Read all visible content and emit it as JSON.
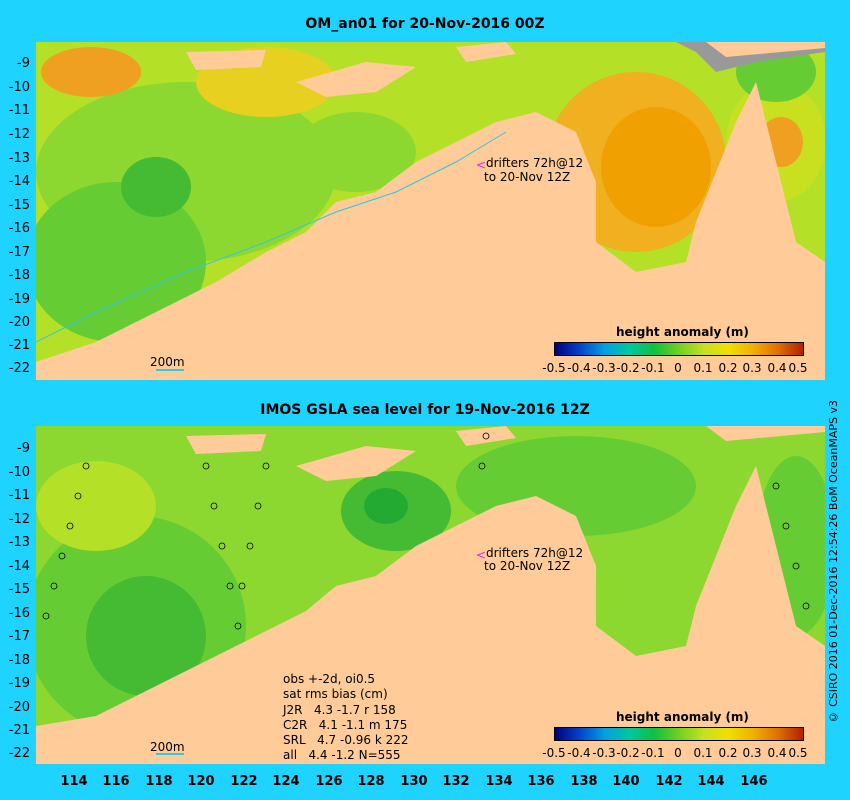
{
  "panel_top": {
    "title": "OM_an01 for 20-Nov-2016 00Z",
    "drifters_line1": "drifters 72h@12",
    "drifters_line2": "to 20-Nov 12Z",
    "scale_label": "200m",
    "legend_title": "height anomaly (m)"
  },
  "panel_bottom": {
    "title": "IMOS GSLA sea level  for 19-Nov-2016 12Z",
    "drifters_line1": "drifters 72h@12",
    "drifters_line2": "to 20-Nov 12Z",
    "scale_label": "200m",
    "legend_title": "height anomaly (m)",
    "stats": [
      "obs +-2d, oi0.5",
      "sat rms bias (cm)",
      "J2R   4.3 -1.7 r 158",
      "C2R   4.1 -1.1 m 175",
      "SRL   4.7 -0.96 k 222",
      "all   4.4 -1.2 N=555"
    ]
  },
  "y_ticks": [
    "-9",
    "-10",
    "-11",
    "-12",
    "-13",
    "-14",
    "-15",
    "-16",
    "-17",
    "-18",
    "-19",
    "-20",
    "-21",
    "-22"
  ],
  "x_ticks": [
    "114",
    "116",
    "118",
    "120",
    "122",
    "124",
    "126",
    "128",
    "130",
    "132",
    "134",
    "136",
    "138",
    "140",
    "142",
    "144",
    "146"
  ],
  "colorbar_ticks": [
    "-0.5",
    "-0.4",
    "-0.3",
    "-0.2",
    "-0.1",
    "0",
    "0.1",
    "0.2",
    "0.3",
    "0.4",
    "0.5"
  ],
  "colorbar_colors": [
    "#00007a",
    "#0044cc",
    "#00a0e0",
    "#00c8a0",
    "#10c040",
    "#70d020",
    "#c8e020",
    "#f0e000",
    "#f0b000",
    "#e07000",
    "#b02000"
  ],
  "colors": {
    "background": "#1fd3ff",
    "land": "#ffcc99",
    "shelf": "#999999"
  },
  "credit": "© CSIRO 2016  01-Dec-2016 12:54:26 BoM OceanMAPS v3"
}
